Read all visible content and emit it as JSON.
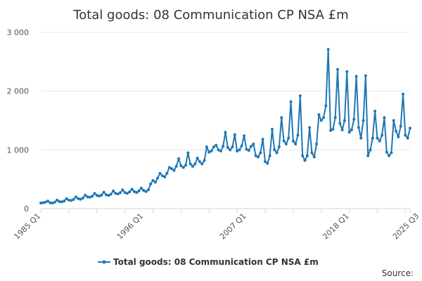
{
  "chart_data": {
    "type": "line",
    "title": "Total goods: 08 Communication CP NSA £m",
    "xlabel": "",
    "ylabel": "",
    "ylim": [
      0,
      3000
    ],
    "yticks": [
      "0",
      "1 000",
      "2 000",
      "3 000"
    ],
    "ytick_values": [
      0,
      1000,
      2000,
      3000
    ],
    "xticks": [
      "1985 Q1",
      "1996 Q1",
      "2007 Q1",
      "2018 Q1",
      "2025 Q3"
    ],
    "xtick_indices": [
      0,
      44,
      88,
      132,
      162
    ],
    "grid": true,
    "legend_position": "bottom-center",
    "series": [
      {
        "name": "Total goods: 08 Communication CP NSA £m",
        "color": "#1f77b4",
        "values": [
          95,
          100,
          110,
          130,
          100,
          95,
          110,
          145,
          120,
          115,
          130,
          170,
          145,
          140,
          155,
          200,
          170,
          160,
          180,
          230,
          200,
          195,
          210,
          260,
          225,
          215,
          230,
          280,
          235,
          225,
          245,
          300,
          260,
          250,
          270,
          320,
          275,
          260,
          285,
          330,
          290,
          275,
          300,
          350,
          310,
          290,
          320,
          420,
          480,
          450,
          520,
          600,
          560,
          540,
          600,
          700,
          680,
          650,
          720,
          850,
          730,
          700,
          740,
          950,
          760,
          720,
          760,
          860,
          800,
          760,
          820,
          1050,
          960,
          980,
          1050,
          1080,
          1000,
          980,
          1060,
          1300,
          1040,
          1000,
          1050,
          1260,
          980,
          1000,
          1070,
          1240,
          1010,
          990,
          1060,
          1100,
          900,
          880,
          950,
          1180,
          800,
          770,
          900,
          1350,
          1000,
          950,
          1050,
          1550,
          1150,
          1100,
          1200,
          1820,
          1150,
          1100,
          1250,
          1920,
          900,
          820,
          900,
          1380,
          950,
          880,
          1100,
          1600,
          1500,
          1550,
          1750,
          2710,
          1330,
          1350,
          1550,
          2370,
          1450,
          1340,
          1500,
          2330,
          1300,
          1340,
          1520,
          2250,
          1380,
          1200,
          1500,
          2260,
          900,
          1000,
          1200,
          1660,
          1200,
          1150,
          1250,
          1550,
          960,
          900,
          950,
          1500,
          1320,
          1220,
          1400,
          1950,
          1250,
          1200,
          1370
        ]
      }
    ]
  },
  "legend": {
    "label": "Total goods: 08 Communication CP NSA £m"
  },
  "footer": {
    "source_label": "Source:"
  }
}
